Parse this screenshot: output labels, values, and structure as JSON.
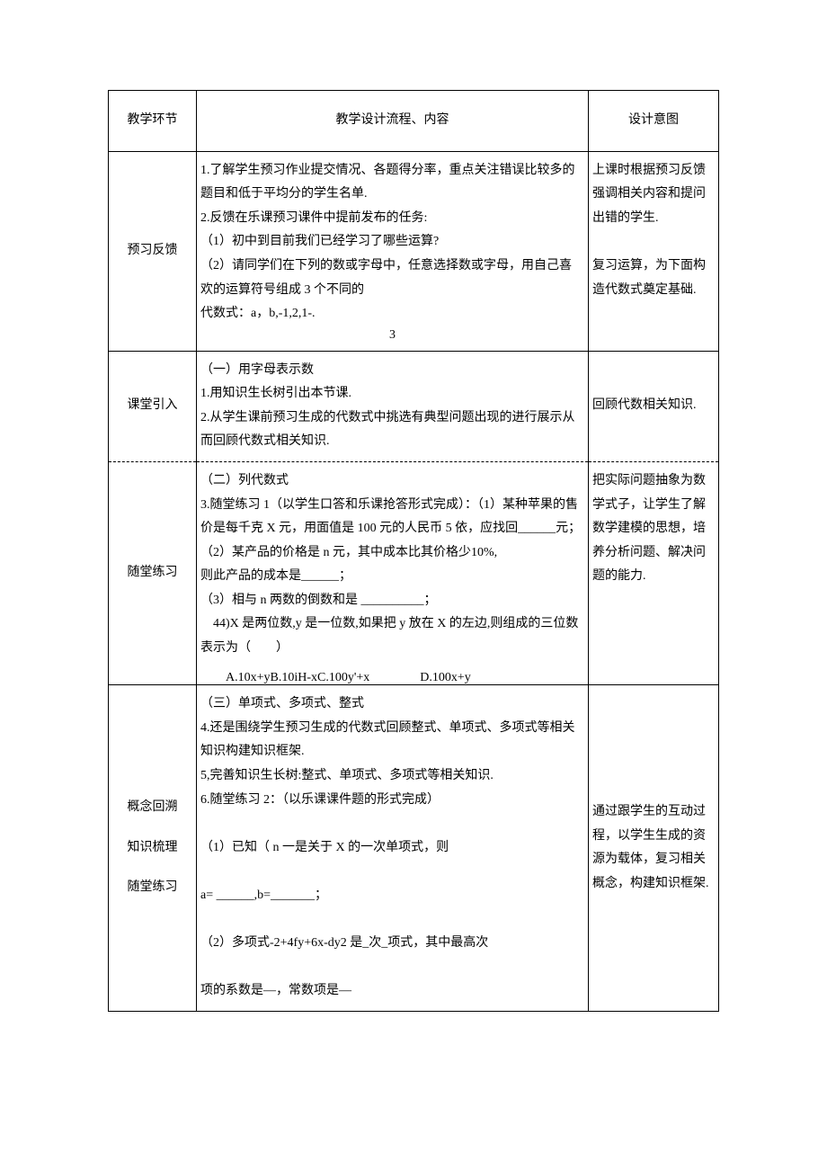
{
  "table": {
    "border_color": "#000000",
    "background_color": "#ffffff",
    "font_family": "SimSun",
    "base_font_size": 14,
    "header": {
      "col1": "教学环节",
      "col2": "教学设计流程、内容",
      "col3": "设计意图"
    },
    "rows": [
      {
        "stage": "预习反馈",
        "content": {
          "p1": "1.了解学生预习作业提交情况、各题得分率，重点关注错误比较多的题目和低于平均分的学生名单.",
          "p2": "2.反馈在乐课预习课件中提前发布的任务:",
          "q1": "（1）初中到目前我们已经学习了哪些运算?",
          "q2": "（2）请同学们在下列的数或字母中，任意选择数或字母，用自己喜欢的运算符号组成 3 个不同的",
          "q3a": "代数式：a，b,-1,2,1-.",
          "q3b": "3"
        },
        "intent": {
          "p1": "上课时根据预习反馈强调相关内容和提问出错的学生.",
          "p2": "复习运算，为下面构造代数式奠定基础."
        }
      },
      {
        "stage": "课堂引入",
        "content": {
          "h": "（一）用字母表示数",
          "p1": "1.用知识生长树引出本节课.",
          "p2": "2.从学生课前预习生成的代数式中挑选有典型问题出现的进行展示从而回顾代数式相关知识."
        },
        "intent": {
          "p1": "回顾代数相关知识."
        }
      },
      {
        "stage": "随堂练习",
        "content": {
          "h": "（二）列代数式",
          "p1": "3.随堂练习 1（以学生口答和乐课抢答形式完成）：（1）某种苹果的售价是每千克 X 元，用面值是 100 元的人民币 5 依，应找回______元；",
          "p2": "（2）某产品的价格是 n 元，其中成本比其价格少10%,",
          "p3": "则此产品的成本是______；",
          "p4": "（3）相与 n 两数的倒数和是 __________；",
          "p5": "　44)X 是两位数,y 是一位数,如果把 y 放在 X 的左边,则组成的三位数表示为（　　）",
          "opts": "　　A.10x+yB.10iH-xC.100y'+x　　　　D.100x+y"
        },
        "intent": {
          "p1": "把实际问题抽象为数学式子，让学生了解数学建模的思想，培养分析问题、解决问题的能力."
        }
      },
      {
        "stages": [
          "概念回溯",
          "知识梳理",
          "随堂练习"
        ],
        "content": {
          "h": "（三）单项式、多项式、整式",
          "p1": "4.还是围绕学生预习生成的代数式回顾整式、单项式、多项式等相关知识构建知识框架.",
          "p2": "5,完善知识生长树:整式、单项式、多项式等相关知识.",
          "p3": "6.随堂练习 2：（以乐课课件题的形式完成）",
          "p4": "（1）已知（ n 一是关于 X 的一次单项式，则",
          "p5": "a= ______,b=_______；",
          "p6": "（2）多项式-2+4fy+6x-dy2 是_次_项式，其中最高次",
          "p7": "项的系数是—，常数项是—"
        },
        "intent": {
          "p1": "通过跟学生的互动过程，以学生生成的资源为载体，复习相关概念，构建知识框架."
        }
      }
    ]
  }
}
